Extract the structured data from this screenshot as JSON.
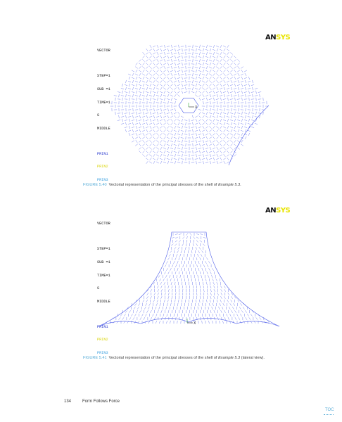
{
  "figure1": {
    "legend_lines": [
      "VECTOR",
      "",
      "STEP=1",
      "SUB =1",
      "TIME=1",
      "S",
      "MIDDLE",
      "",
      "PRIN1",
      "PRIN2",
      "PRIN3"
    ],
    "logo_dark": "AN",
    "logo_yellow": "SYS",
    "axis_label": "X",
    "caption_label": "FIGURE 5.40",
    "caption_text": "Vectorial representation of the principal stresses of the shell of",
    "caption_example": "Example 5.3",
    "caption_end": "."
  },
  "figure2": {
    "legend_lines": [
      "VECTOR",
      "",
      "STEP=1",
      "SUB =1",
      "TIME=1",
      "S",
      "MIDDLE",
      "",
      "PRIN1",
      "PRIN2",
      "PRIN3"
    ],
    "logo_dark": "AN",
    "logo_yellow": "SYS",
    "axis_label": "X",
    "caption_label": "FIGURE 5.41",
    "caption_text": "Vectorial representation of the principal stresses of the shell of",
    "caption_example": "Example 5.3",
    "caption_end": "(lateral view)."
  },
  "footer": {
    "page_number": "134",
    "book_title": "Form Follows Force",
    "toc_link": "TOC"
  },
  "colors": {
    "vectors": "#4a5ae8",
    "prin1": "#2233cc",
    "prin2": "#e8e400",
    "prin3": "#5aaed8",
    "accent": "#5aaed8"
  }
}
